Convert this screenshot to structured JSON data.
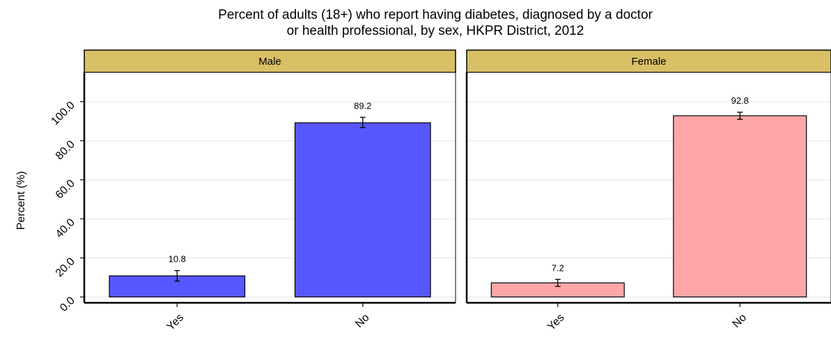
{
  "chart_data": {
    "type": "bar",
    "title": "Percent of adults (18+) who report having diabetes, diagnosed by a doctor or health professional, by sex, HKPR District, 2012",
    "title_lines": [
      "Percent of adults (18+) who report having diabetes, diagnosed by a doctor",
      "or health professional, by sex, HKPR District, 2012"
    ],
    "ylabel": "Percent (%)",
    "xlabel": "",
    "ylim": [
      -3,
      115
    ],
    "yticks": [
      0,
      20,
      40,
      60,
      80,
      100
    ],
    "ytick_labels": [
      "0.0",
      "20.0",
      "40.0",
      "60.0",
      "80.0",
      "100.0"
    ],
    "grid": true,
    "strip_color": "#d9c066",
    "panels": [
      {
        "name": "Male",
        "color": "#5757ff",
        "categories": [
          "Yes",
          "No"
        ],
        "values": [
          10.8,
          89.2
        ],
        "value_labels": [
          "10.8",
          "89.2"
        ],
        "ci_lower": [
          8.1,
          86.7
        ],
        "ci_upper": [
          13.5,
          92.0
        ]
      },
      {
        "name": "Female",
        "color": "#ffa6a6",
        "categories": [
          "Yes",
          "No"
        ],
        "values": [
          7.2,
          92.8
        ],
        "value_labels": [
          "7.2",
          "92.8"
        ],
        "ci_lower": [
          5.4,
          91.0
        ],
        "ci_upper": [
          9.0,
          94.6
        ]
      }
    ]
  }
}
